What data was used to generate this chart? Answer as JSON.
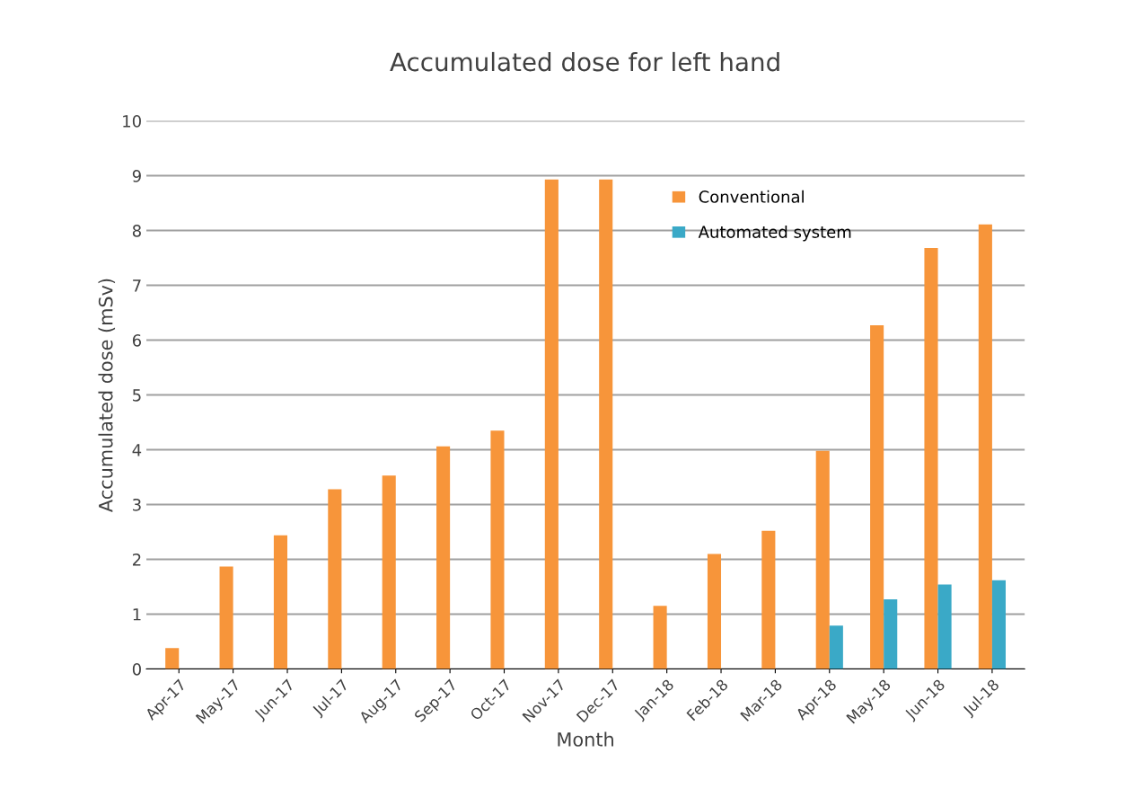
{
  "chart_data": {
    "type": "bar",
    "title": "Accumulated dose for left hand",
    "xlabel": "Month",
    "ylabel": "Accumulated dose (mSv)",
    "categories": [
      "Apr-17",
      "May-17",
      "Jun-17",
      "Jul-17",
      "Aug-17",
      "Sep-17",
      "Oct-17",
      "Nov-17",
      "Dec-17",
      "Jan-18",
      "Feb-18",
      "Mar-18",
      "Apr-18",
      "May-18",
      "Jun-18",
      "Jul-18"
    ],
    "series": [
      {
        "name": "Conventional",
        "color": "#f7953a",
        "values": [
          0.38,
          1.87,
          2.44,
          3.28,
          3.53,
          4.06,
          4.35,
          8.93,
          8.93,
          1.15,
          2.1,
          2.52,
          3.98,
          6.27,
          7.68,
          8.11
        ]
      },
      {
        "name": "Automated system",
        "color": "#3aa9c7",
        "values": [
          null,
          null,
          null,
          null,
          null,
          null,
          null,
          null,
          null,
          null,
          null,
          null,
          0.79,
          1.27,
          1.54,
          1.62
        ]
      }
    ],
    "ylim": [
      0,
      10
    ],
    "yticks": [
      0,
      1,
      2,
      3,
      4,
      5,
      6,
      7,
      8,
      9,
      10
    ],
    "grid": "y",
    "legend": "top right"
  }
}
